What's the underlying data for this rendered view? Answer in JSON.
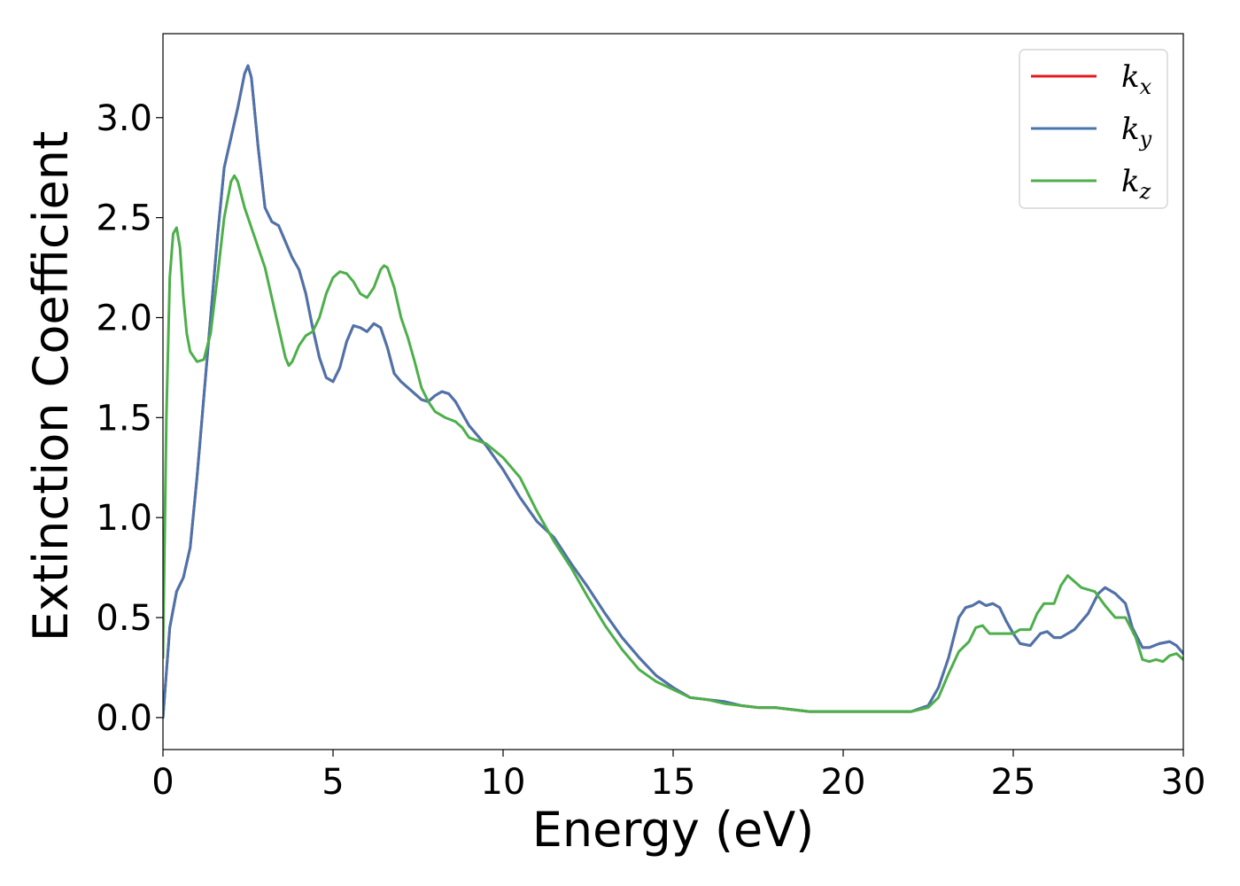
{
  "chart_data": {
    "type": "line",
    "title": "",
    "xlabel": "Energy (eV)",
    "ylabel": "Extinction Coefficient",
    "xlim": [
      0,
      30
    ],
    "ylim": [
      -0.16,
      3.42
    ],
    "xticks": [
      0,
      5,
      10,
      15,
      20,
      25,
      30
    ],
    "xtick_labels": [
      "0",
      "5",
      "10",
      "15",
      "20",
      "25",
      "30"
    ],
    "yticks": [
      0.0,
      0.5,
      1.0,
      1.5,
      2.0,
      2.5,
      3.0
    ],
    "ytick_labels": [
      "0.0",
      "0.5",
      "1.0",
      "1.5",
      "2.0",
      "2.5",
      "3.0"
    ],
    "grid": false,
    "legend_position": "top-right",
    "series": [
      {
        "name": "k_x",
        "legend_base": "k",
        "legend_sub": "x",
        "color": "#e41a1c",
        "points": [
          [
            0,
            0
          ],
          [
            0.2,
            0.45
          ],
          [
            0.4,
            0.63
          ],
          [
            0.6,
            0.7
          ],
          [
            0.8,
            0.85
          ],
          [
            1.0,
            1.2
          ],
          [
            1.2,
            1.6
          ],
          [
            1.4,
            2.0
          ],
          [
            1.6,
            2.4
          ],
          [
            1.8,
            2.75
          ],
          [
            2.0,
            2.9
          ],
          [
            2.2,
            3.05
          ],
          [
            2.4,
            3.22
          ],
          [
            2.5,
            3.26
          ],
          [
            2.6,
            3.2
          ],
          [
            2.8,
            2.85
          ],
          [
            3.0,
            2.55
          ],
          [
            3.2,
            2.48
          ],
          [
            3.4,
            2.46
          ],
          [
            3.6,
            2.38
          ],
          [
            3.8,
            2.3
          ],
          [
            4.0,
            2.24
          ],
          [
            4.2,
            2.12
          ],
          [
            4.4,
            1.95
          ],
          [
            4.6,
            1.8
          ],
          [
            4.8,
            1.7
          ],
          [
            5.0,
            1.68
          ],
          [
            5.2,
            1.75
          ],
          [
            5.4,
            1.88
          ],
          [
            5.6,
            1.96
          ],
          [
            5.8,
            1.95
          ],
          [
            6.0,
            1.93
          ],
          [
            6.2,
            1.97
          ],
          [
            6.4,
            1.95
          ],
          [
            6.6,
            1.85
          ],
          [
            6.8,
            1.72
          ],
          [
            7.0,
            1.68
          ],
          [
            7.2,
            1.65
          ],
          [
            7.4,
            1.62
          ],
          [
            7.6,
            1.59
          ],
          [
            7.8,
            1.58
          ],
          [
            8.0,
            1.61
          ],
          [
            8.2,
            1.63
          ],
          [
            8.4,
            1.62
          ],
          [
            8.6,
            1.58
          ],
          [
            8.8,
            1.52
          ],
          [
            9.0,
            1.46
          ],
          [
            9.2,
            1.42
          ],
          [
            9.5,
            1.36
          ],
          [
            10.0,
            1.24
          ],
          [
            10.5,
            1.1
          ],
          [
            11.0,
            0.98
          ],
          [
            11.5,
            0.9
          ],
          [
            12.0,
            0.77
          ],
          [
            12.5,
            0.65
          ],
          [
            13.0,
            0.52
          ],
          [
            13.5,
            0.4
          ],
          [
            14.0,
            0.3
          ],
          [
            14.5,
            0.21
          ],
          [
            15.0,
            0.15
          ],
          [
            15.5,
            0.1
          ],
          [
            16.0,
            0.09
          ],
          [
            16.5,
            0.08
          ],
          [
            17.0,
            0.06
          ],
          [
            17.5,
            0.05
          ],
          [
            18.0,
            0.05
          ],
          [
            18.5,
            0.04
          ],
          [
            19.0,
            0.03
          ],
          [
            20.0,
            0.03
          ],
          [
            21.0,
            0.03
          ],
          [
            22.0,
            0.03
          ],
          [
            22.5,
            0.06
          ],
          [
            22.8,
            0.15
          ],
          [
            23.1,
            0.3
          ],
          [
            23.4,
            0.5
          ],
          [
            23.6,
            0.55
          ],
          [
            23.8,
            0.56
          ],
          [
            24.0,
            0.58
          ],
          [
            24.2,
            0.56
          ],
          [
            24.4,
            0.57
          ],
          [
            24.6,
            0.55
          ],
          [
            24.8,
            0.48
          ],
          [
            25.0,
            0.42
          ],
          [
            25.2,
            0.37
          ],
          [
            25.5,
            0.36
          ],
          [
            25.8,
            0.42
          ],
          [
            26.0,
            0.43
          ],
          [
            26.2,
            0.4
          ],
          [
            26.4,
            0.4
          ],
          [
            26.8,
            0.44
          ],
          [
            27.2,
            0.52
          ],
          [
            27.5,
            0.62
          ],
          [
            27.7,
            0.65
          ],
          [
            28.0,
            0.62
          ],
          [
            28.3,
            0.57
          ],
          [
            28.5,
            0.45
          ],
          [
            28.8,
            0.35
          ],
          [
            29.0,
            0.35
          ],
          [
            29.3,
            0.37
          ],
          [
            29.6,
            0.38
          ],
          [
            29.8,
            0.36
          ],
          [
            30.0,
            0.32
          ]
        ]
      },
      {
        "name": "k_y",
        "legend_base": "k",
        "legend_sub": "y",
        "color": "#4a74ad",
        "points": [
          [
            0,
            0
          ],
          [
            0.2,
            0.45
          ],
          [
            0.4,
            0.63
          ],
          [
            0.6,
            0.7
          ],
          [
            0.8,
            0.85
          ],
          [
            1.0,
            1.2
          ],
          [
            1.2,
            1.6
          ],
          [
            1.4,
            2.0
          ],
          [
            1.6,
            2.4
          ],
          [
            1.8,
            2.75
          ],
          [
            2.0,
            2.9
          ],
          [
            2.2,
            3.05
          ],
          [
            2.4,
            3.22
          ],
          [
            2.5,
            3.26
          ],
          [
            2.6,
            3.2
          ],
          [
            2.8,
            2.85
          ],
          [
            3.0,
            2.55
          ],
          [
            3.2,
            2.48
          ],
          [
            3.4,
            2.46
          ],
          [
            3.6,
            2.38
          ],
          [
            3.8,
            2.3
          ],
          [
            4.0,
            2.24
          ],
          [
            4.2,
            2.12
          ],
          [
            4.4,
            1.95
          ],
          [
            4.6,
            1.8
          ],
          [
            4.8,
            1.7
          ],
          [
            5.0,
            1.68
          ],
          [
            5.2,
            1.75
          ],
          [
            5.4,
            1.88
          ],
          [
            5.6,
            1.96
          ],
          [
            5.8,
            1.95
          ],
          [
            6.0,
            1.93
          ],
          [
            6.2,
            1.97
          ],
          [
            6.4,
            1.95
          ],
          [
            6.6,
            1.85
          ],
          [
            6.8,
            1.72
          ],
          [
            7.0,
            1.68
          ],
          [
            7.2,
            1.65
          ],
          [
            7.4,
            1.62
          ],
          [
            7.6,
            1.59
          ],
          [
            7.8,
            1.58
          ],
          [
            8.0,
            1.61
          ],
          [
            8.2,
            1.63
          ],
          [
            8.4,
            1.62
          ],
          [
            8.6,
            1.58
          ],
          [
            8.8,
            1.52
          ],
          [
            9.0,
            1.46
          ],
          [
            9.2,
            1.42
          ],
          [
            9.5,
            1.36
          ],
          [
            10.0,
            1.24
          ],
          [
            10.5,
            1.1
          ],
          [
            11.0,
            0.98
          ],
          [
            11.5,
            0.9
          ],
          [
            12.0,
            0.77
          ],
          [
            12.5,
            0.65
          ],
          [
            13.0,
            0.52
          ],
          [
            13.5,
            0.4
          ],
          [
            14.0,
            0.3
          ],
          [
            14.5,
            0.21
          ],
          [
            15.0,
            0.15
          ],
          [
            15.5,
            0.1
          ],
          [
            16.0,
            0.09
          ],
          [
            16.5,
            0.08
          ],
          [
            17.0,
            0.06
          ],
          [
            17.5,
            0.05
          ],
          [
            18.0,
            0.05
          ],
          [
            18.5,
            0.04
          ],
          [
            19.0,
            0.03
          ],
          [
            20.0,
            0.03
          ],
          [
            21.0,
            0.03
          ],
          [
            22.0,
            0.03
          ],
          [
            22.5,
            0.06
          ],
          [
            22.8,
            0.15
          ],
          [
            23.1,
            0.3
          ],
          [
            23.4,
            0.5
          ],
          [
            23.6,
            0.55
          ],
          [
            23.8,
            0.56
          ],
          [
            24.0,
            0.58
          ],
          [
            24.2,
            0.56
          ],
          [
            24.4,
            0.57
          ],
          [
            24.6,
            0.55
          ],
          [
            24.8,
            0.48
          ],
          [
            25.0,
            0.42
          ],
          [
            25.2,
            0.37
          ],
          [
            25.5,
            0.36
          ],
          [
            25.8,
            0.42
          ],
          [
            26.0,
            0.43
          ],
          [
            26.2,
            0.4
          ],
          [
            26.4,
            0.4
          ],
          [
            26.8,
            0.44
          ],
          [
            27.2,
            0.52
          ],
          [
            27.5,
            0.62
          ],
          [
            27.7,
            0.65
          ],
          [
            28.0,
            0.62
          ],
          [
            28.3,
            0.57
          ],
          [
            28.5,
            0.45
          ],
          [
            28.8,
            0.35
          ],
          [
            29.0,
            0.35
          ],
          [
            29.3,
            0.37
          ],
          [
            29.6,
            0.38
          ],
          [
            29.8,
            0.36
          ],
          [
            30.0,
            0.32
          ]
        ]
      },
      {
        "name": "k_z",
        "legend_base": "k",
        "legend_sub": "z",
        "color": "#4daf4a",
        "points": [
          [
            0,
            0.3
          ],
          [
            0.1,
            1.5
          ],
          [
            0.2,
            2.2
          ],
          [
            0.3,
            2.42
          ],
          [
            0.4,
            2.45
          ],
          [
            0.5,
            2.35
          ],
          [
            0.6,
            2.1
          ],
          [
            0.7,
            1.92
          ],
          [
            0.8,
            1.83
          ],
          [
            1.0,
            1.78
          ],
          [
            1.2,
            1.79
          ],
          [
            1.4,
            1.92
          ],
          [
            1.6,
            2.2
          ],
          [
            1.8,
            2.5
          ],
          [
            2.0,
            2.68
          ],
          [
            2.1,
            2.71
          ],
          [
            2.2,
            2.68
          ],
          [
            2.4,
            2.55
          ],
          [
            2.6,
            2.45
          ],
          [
            2.8,
            2.35
          ],
          [
            3.0,
            2.25
          ],
          [
            3.2,
            2.1
          ],
          [
            3.4,
            1.95
          ],
          [
            3.6,
            1.8
          ],
          [
            3.7,
            1.76
          ],
          [
            3.8,
            1.78
          ],
          [
            4.0,
            1.86
          ],
          [
            4.2,
            1.91
          ],
          [
            4.4,
            1.93
          ],
          [
            4.6,
            2.0
          ],
          [
            4.8,
            2.12
          ],
          [
            5.0,
            2.2
          ],
          [
            5.2,
            2.23
          ],
          [
            5.4,
            2.22
          ],
          [
            5.6,
            2.18
          ],
          [
            5.8,
            2.12
          ],
          [
            6.0,
            2.1
          ],
          [
            6.2,
            2.15
          ],
          [
            6.4,
            2.24
          ],
          [
            6.5,
            2.26
          ],
          [
            6.6,
            2.25
          ],
          [
            6.8,
            2.15
          ],
          [
            7.0,
            2.0
          ],
          [
            7.2,
            1.9
          ],
          [
            7.4,
            1.78
          ],
          [
            7.6,
            1.65
          ],
          [
            7.8,
            1.58
          ],
          [
            8.0,
            1.53
          ],
          [
            8.3,
            1.5
          ],
          [
            8.6,
            1.48
          ],
          [
            8.8,
            1.45
          ],
          [
            9.0,
            1.4
          ],
          [
            9.5,
            1.37
          ],
          [
            10.0,
            1.3
          ],
          [
            10.5,
            1.2
          ],
          [
            11.0,
            1.03
          ],
          [
            11.5,
            0.88
          ],
          [
            12.0,
            0.75
          ],
          [
            12.5,
            0.6
          ],
          [
            13.0,
            0.46
          ],
          [
            13.5,
            0.34
          ],
          [
            14.0,
            0.24
          ],
          [
            14.5,
            0.18
          ],
          [
            15.0,
            0.14
          ],
          [
            15.5,
            0.1
          ],
          [
            16.0,
            0.09
          ],
          [
            16.5,
            0.07
          ],
          [
            17.0,
            0.06
          ],
          [
            17.5,
            0.05
          ],
          [
            18.0,
            0.05
          ],
          [
            18.5,
            0.04
          ],
          [
            19.0,
            0.03
          ],
          [
            20.0,
            0.03
          ],
          [
            21.0,
            0.03
          ],
          [
            22.0,
            0.03
          ],
          [
            22.5,
            0.05
          ],
          [
            22.8,
            0.1
          ],
          [
            23.1,
            0.22
          ],
          [
            23.4,
            0.33
          ],
          [
            23.7,
            0.38
          ],
          [
            23.9,
            0.45
          ],
          [
            24.1,
            0.46
          ],
          [
            24.3,
            0.42
          ],
          [
            24.6,
            0.42
          ],
          [
            25.0,
            0.42
          ],
          [
            25.2,
            0.44
          ],
          [
            25.5,
            0.44
          ],
          [
            25.7,
            0.52
          ],
          [
            25.9,
            0.57
          ],
          [
            26.2,
            0.57
          ],
          [
            26.4,
            0.66
          ],
          [
            26.6,
            0.71
          ],
          [
            26.8,
            0.68
          ],
          [
            27.0,
            0.65
          ],
          [
            27.4,
            0.63
          ],
          [
            27.7,
            0.56
          ],
          [
            28.0,
            0.5
          ],
          [
            28.3,
            0.5
          ],
          [
            28.6,
            0.4
          ],
          [
            28.8,
            0.29
          ],
          [
            29.0,
            0.28
          ],
          [
            29.2,
            0.29
          ],
          [
            29.4,
            0.28
          ],
          [
            29.6,
            0.31
          ],
          [
            29.8,
            0.32
          ],
          [
            30.0,
            0.29
          ]
        ]
      }
    ]
  }
}
